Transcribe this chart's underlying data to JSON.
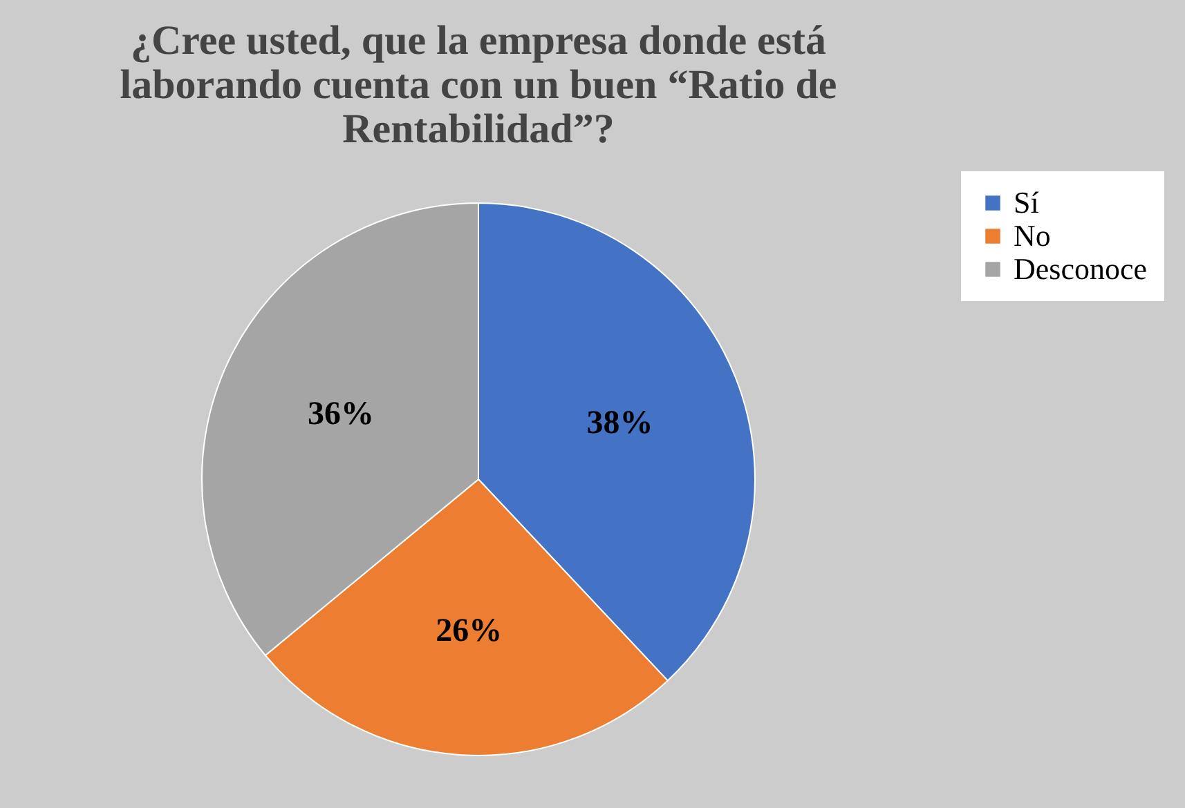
{
  "chart_data": {
    "type": "pie",
    "title": "¿Cree usted, que la empresa donde está laborando cuenta con un buen “Ratio de Rentabilidad”?",
    "categories": [
      "Sí",
      "No",
      "Desconoce"
    ],
    "values": [
      38,
      26,
      36
    ],
    "colors": [
      "#4472c4",
      "#ed7d31",
      "#a5a5a5"
    ],
    "value_labels": [
      "38%",
      "26%",
      "36%"
    ],
    "legend": "right"
  }
}
